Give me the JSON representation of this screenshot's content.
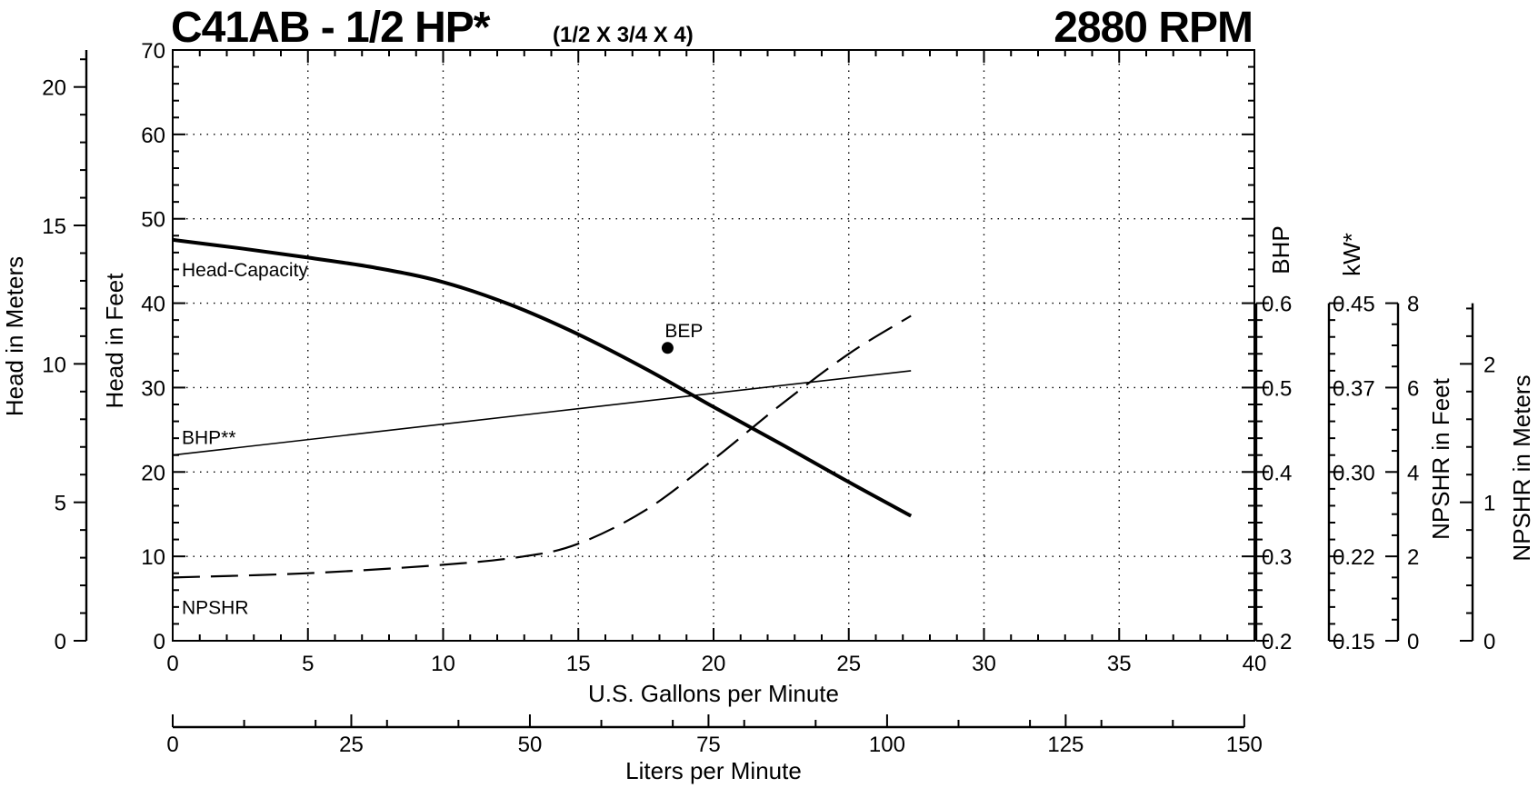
{
  "chart_data": {
    "type": "line",
    "title": "C41AB - 1/2 HP*",
    "subtitle": "(1/2 X 3/4 X 4)",
    "speed": "2880 RPM",
    "xlabel": "U.S. Gallons per Minute",
    "xlabel2": "Liters per Minute",
    "ylabel": "Head in Feet",
    "ylabel_meters": "Head in Meters",
    "ylabel_bhp": "BHP",
    "ylabel_kw": "kW*",
    "ylabel_npshr_ft": "NPSHR in Feet",
    "ylabel_npshr_m": "NPSHR in Meters",
    "xlim": [
      0,
      40
    ],
    "ylim": [
      0,
      70
    ],
    "grid": true,
    "x_ticks": [
      "0",
      "5",
      "10",
      "15",
      "20",
      "25",
      "30",
      "35",
      "40"
    ],
    "y_ticks": [
      "0",
      "10",
      "20",
      "30",
      "40",
      "50",
      "60",
      "70"
    ],
    "liters_ticks": [
      "0",
      "25",
      "50",
      "75",
      "100",
      "125",
      "150"
    ],
    "meters_ticks": [
      "0",
      "5",
      "10",
      "15",
      "20"
    ],
    "bhp_ticks": [
      "0.2",
      "0.3",
      "0.4",
      "0.5",
      "0.6"
    ],
    "kw_ticks": [
      "0.15",
      "0.22",
      "0.30",
      "0.37",
      "0.45"
    ],
    "npshr_ft_ticks": [
      "0",
      "2",
      "4",
      "6",
      "8"
    ],
    "npshr_m_ticks": [
      "0",
      "1",
      "2"
    ],
    "series": [
      {
        "name": "Head-Capacity",
        "axis": "feet",
        "style": "thick",
        "x": [
          0,
          2.5,
          5,
          7.5,
          10,
          12.5,
          15,
          17.5,
          20,
          22.5,
          25,
          27.3
        ],
        "y": [
          47.5,
          46.5,
          45.4,
          44.2,
          42.5,
          39.8,
          36.3,
          32.2,
          27.7,
          23.3,
          18.8,
          14.8
        ]
      },
      {
        "name": "BHP**",
        "axis": "bhp",
        "style": "thin",
        "x": [
          0,
          27.3
        ],
        "y": [
          0.42,
          0.52
        ]
      },
      {
        "name": "NPSHR",
        "axis": "npshr_ft",
        "style": "dashed",
        "x": [
          0,
          5,
          10,
          13,
          15,
          17.5,
          20,
          22.5,
          25,
          27.3
        ],
        "y": [
          1.5,
          1.6,
          1.8,
          2.0,
          2.3,
          3.1,
          4.3,
          5.6,
          6.8,
          7.7
        ]
      }
    ],
    "annotations": [
      {
        "label": "BEP",
        "x": 18.3,
        "y": 34.7
      }
    ]
  }
}
